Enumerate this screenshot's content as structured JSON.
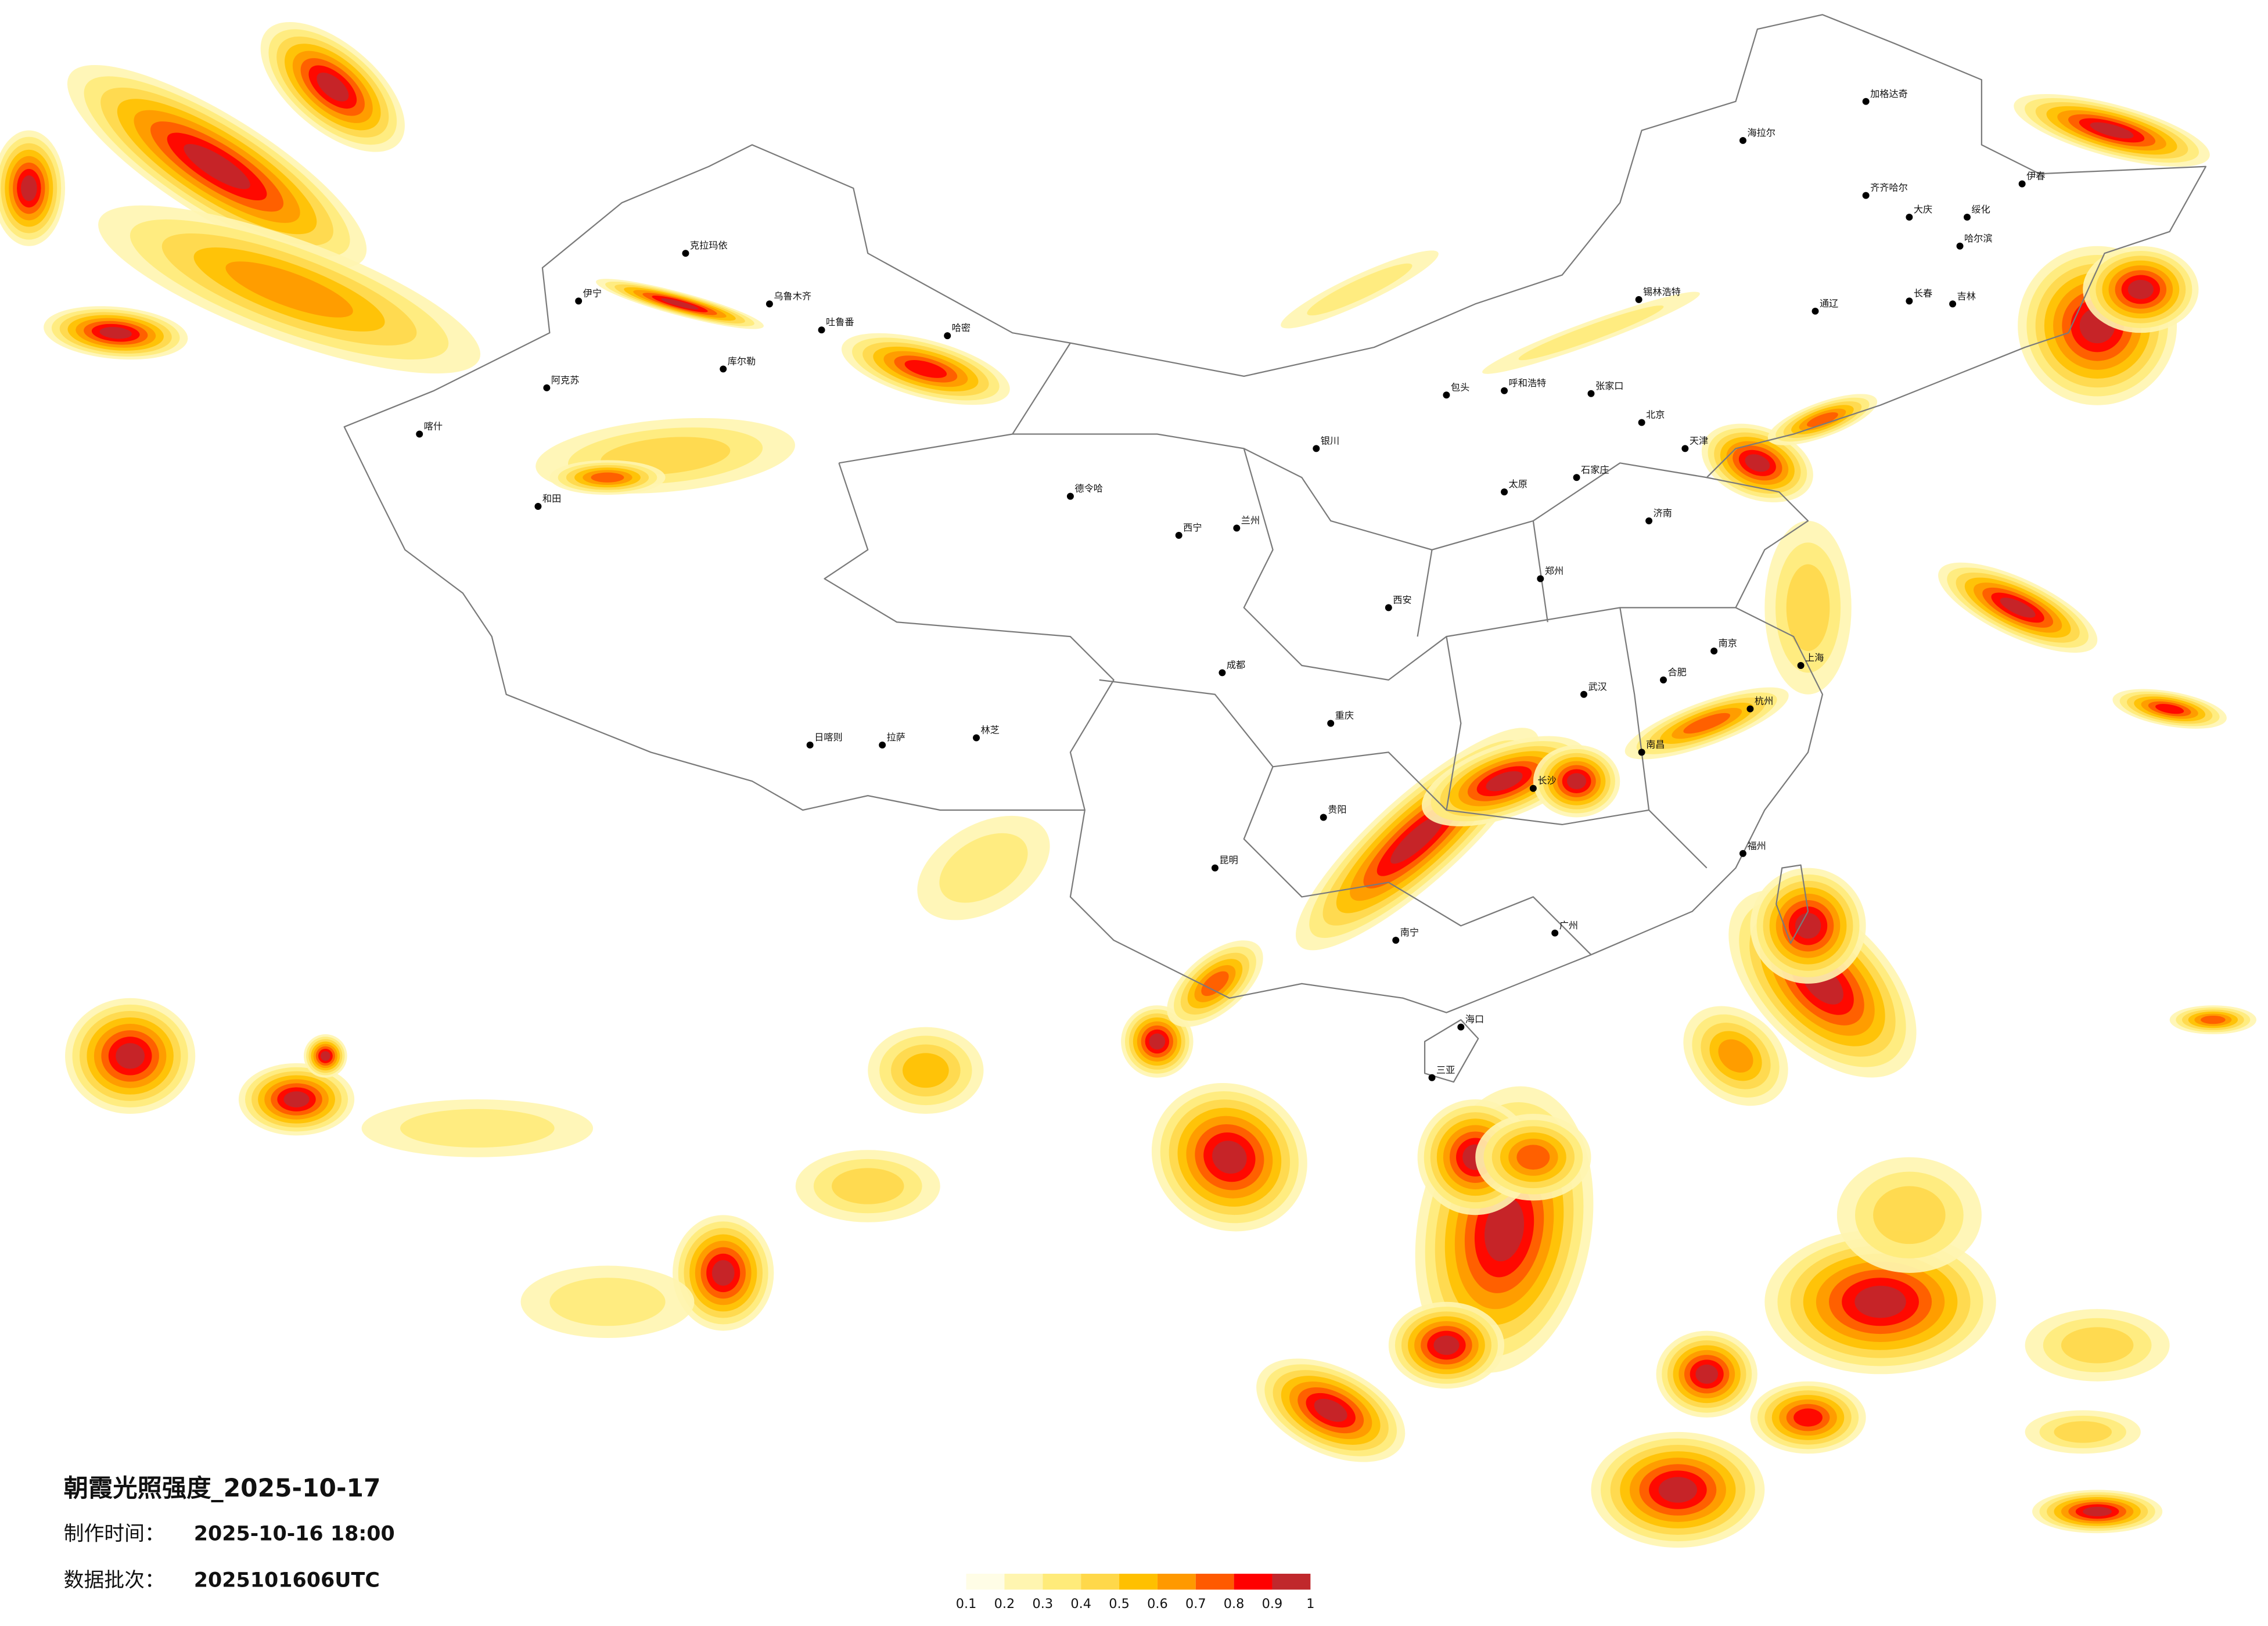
{
  "title": "朝霞光照强度_2025-10-17",
  "info": [
    {
      "label": "制作时间：",
      "value": "2025-10-16 18:00"
    },
    {
      "label": "数据批次：",
      "value": "2025101606UTC"
    }
  ],
  "legend": {
    "ticks": [
      0.1,
      0.2,
      0.3,
      0.4,
      0.5,
      0.6,
      0.7,
      0.8,
      0.9,
      1
    ],
    "colors": [
      "#fffde6",
      "#fff5b0",
      "#ffeb7a",
      "#ffd84a",
      "#ffc000",
      "#ff9900",
      "#ff5a00",
      "#ff0000",
      "#c0282c"
    ]
  },
  "cities": [
    "克拉玛依",
    "伊宁",
    "乌鲁木齐",
    "吐鲁番",
    "哈密",
    "库尔勒",
    "阿克苏",
    "喀什",
    "和田",
    "德令哈",
    "日喀则",
    "拉萨",
    "林芝",
    "海拉尔",
    "加格达奇",
    "齐齐哈尔",
    "大庆",
    "哈尔滨",
    "伊春",
    "绥化",
    "长春",
    "吉林",
    "通辽",
    "锡林浩特",
    "呼和浩特",
    "包头",
    "张家口",
    "北京",
    "天津",
    "石家庄",
    "太原",
    "济南",
    "郑州",
    "西安",
    "兰州",
    "西宁",
    "银川",
    "成都",
    "重庆",
    "贵阳",
    "昆明",
    "南宁",
    "广州",
    "长沙",
    "武汉",
    "南昌",
    "福州",
    "杭州",
    "上海",
    "南京",
    "合肥",
    "海口",
    "三亚"
  ]
}
